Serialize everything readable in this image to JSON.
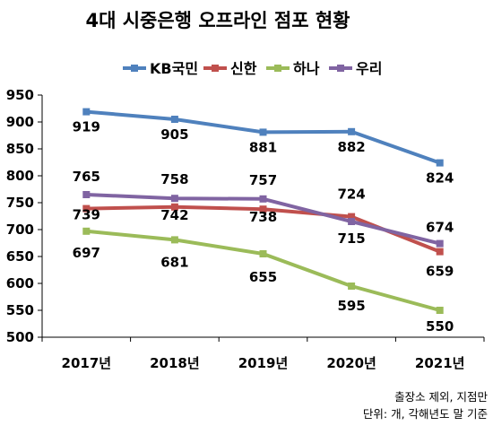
{
  "chart_data": {
    "type": "line",
    "title": "4대 시중은행 오프라인 점포 현황",
    "categories": [
      "2017년",
      "2018년",
      "2019년",
      "2020년",
      "2021년"
    ],
    "ylim": [
      500,
      950
    ],
    "yticks": [
      500,
      550,
      600,
      650,
      700,
      750,
      800,
      850,
      900,
      950
    ],
    "grid": false,
    "legend_position": "top",
    "series": [
      {
        "name": "KB국민",
        "color": "#4f81bd",
        "values": [
          919,
          905,
          881,
          882,
          824
        ]
      },
      {
        "name": "신한",
        "color": "#c0504d",
        "values": [
          739,
          742,
          738,
          724,
          659
        ]
      },
      {
        "name": "하나",
        "color": "#9bbb59",
        "values": [
          697,
          681,
          655,
          595,
          550
        ]
      },
      {
        "name": "우리",
        "color": "#8064a2",
        "values": [
          765,
          758,
          757,
          715,
          674
        ]
      }
    ],
    "notes": [
      "출장소 제외, 지점만",
      "단위: 개, 각해년도 말 기준"
    ]
  }
}
